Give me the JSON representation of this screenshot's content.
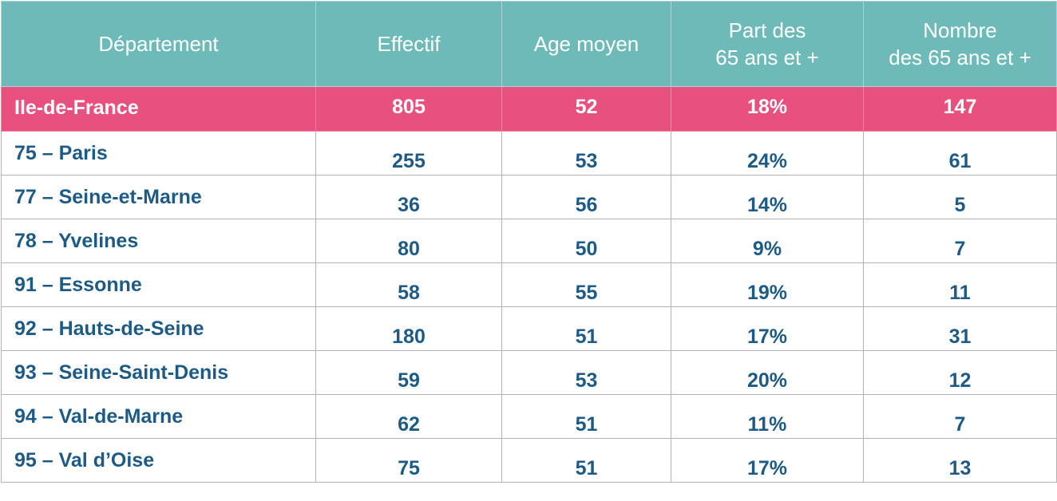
{
  "table": {
    "headers": [
      [
        "Département"
      ],
      [
        "Effectif"
      ],
      [
        "Age moyen"
      ],
      [
        "Part des",
        "65 ans et +"
      ],
      [
        "Nombre",
        "des 65 ans et +"
      ]
    ],
    "region_row": {
      "name": "Ile-de-France",
      "effectif": "805",
      "age_moyen": "52",
      "part_65": "18%",
      "nombre_65": "147"
    },
    "rows": [
      {
        "name": "75 – Paris",
        "effectif": "255",
        "age_moyen": "53",
        "part_65": "24%",
        "nombre_65": "61"
      },
      {
        "name": "77 – Seine-et-Marne",
        "effectif": "36",
        "age_moyen": "56",
        "part_65": "14%",
        "nombre_65": "5"
      },
      {
        "name": "78 – Yvelines",
        "effectif": "80",
        "age_moyen": "50",
        "part_65": "9%",
        "nombre_65": "7"
      },
      {
        "name": "91 – Essonne",
        "effectif": "58",
        "age_moyen": "55",
        "part_65": "19%",
        "nombre_65": "11"
      },
      {
        "name": "92 – Hauts-de-Seine",
        "effectif": "180",
        "age_moyen": "51",
        "part_65": "17%",
        "nombre_65": "31"
      },
      {
        "name": "93 – Seine-Saint-Denis",
        "effectif": "59",
        "age_moyen": "53",
        "part_65": "20%",
        "nombre_65": "12"
      },
      {
        "name": "94 – Val-de-Marne",
        "effectif": "62",
        "age_moyen": "51",
        "part_65": "11%",
        "nombre_65": "7"
      },
      {
        "name": "95 – Val d’Oise",
        "effectif": "75",
        "age_moyen": "51",
        "part_65": "17%",
        "nombre_65": "13"
      }
    ]
  },
  "colors": {
    "header_bg": "#6dbab8",
    "region_bg": "#e8517f",
    "body_text": "#1d5b86"
  }
}
